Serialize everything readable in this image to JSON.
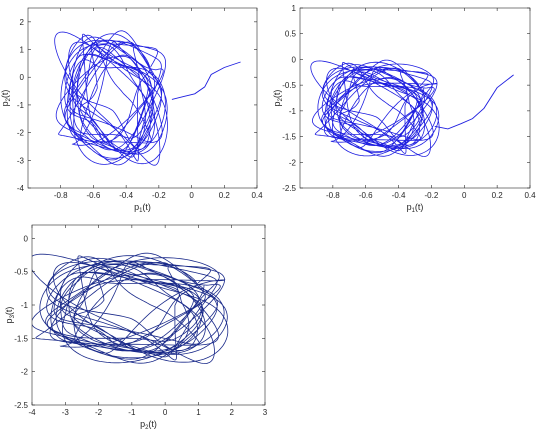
{
  "colors": {
    "curve": "#1f1fe0",
    "curve_dark": "#1a2a8a",
    "axis": "#262626",
    "bg": "#ffffff"
  },
  "chart_data": [
    {
      "type": "line",
      "title": "",
      "xlabel": "p_1(t)",
      "ylabel": "p_2(t)",
      "xlim": [
        -1,
        0.4
      ],
      "ylim": [
        -4,
        2.5
      ],
      "xticks": [
        "-0.8",
        "-0.6",
        "-0.4",
        "-0.2",
        "0",
        "0.2",
        "0.4"
      ],
      "yticks": [
        "2",
        "1",
        "0",
        "-1",
        "-2",
        "-3",
        "-4"
      ],
      "xtick_values": [
        -0.8,
        -0.6,
        -0.4,
        -0.2,
        0,
        0.2,
        0.4
      ],
      "ytick_values": [
        2,
        1,
        0,
        -1,
        -2,
        -3,
        -4
      ],
      "grid": false,
      "series": [
        {
          "color": "#1f1fe0",
          "attractor": {
            "cx": -0.48,
            "cy": -0.75,
            "rx": 0.3,
            "ry": 2.2,
            "loops": 22
          },
          "transient": {
            "x": [
              0.3,
              0.2,
              0.12,
              0.08,
              0.02,
              -0.05,
              -0.12
            ],
            "y": [
              0.55,
              0.35,
              0.1,
              -0.35,
              -0.6,
              -0.7,
              -0.8
            ]
          }
        }
      ]
    },
    {
      "type": "line",
      "title": "",
      "xlabel": "p_1(t)",
      "ylabel": "p_2(t)",
      "xlim": [
        -1,
        0.4
      ],
      "ylim": [
        -2.5,
        1
      ],
      "xticks": [
        "-0.8",
        "-0.6",
        "-0.4",
        "-0.2",
        "0",
        "0.2",
        "0.4"
      ],
      "yticks": [
        "1",
        "0.5",
        "0",
        "-0.5",
        "-1",
        "-1.5",
        "-2",
        "-2.5"
      ],
      "xtick_values": [
        -0.8,
        -0.6,
        -0.4,
        -0.2,
        0,
        0.2,
        0.4
      ],
      "ytick_values": [
        1,
        0.5,
        0,
        -0.5,
        -1,
        -1.5,
        -2,
        -2.5
      ],
      "grid": false,
      "series": [
        {
          "color": "#1f1fe0",
          "attractor": {
            "cx": -0.53,
            "cy": -0.95,
            "rx": 0.34,
            "ry": 0.85,
            "loops": 24
          },
          "transient": {
            "x": [
              0.3,
              0.2,
              0.12,
              0.05,
              -0.02,
              -0.1,
              -0.18
            ],
            "y": [
              -0.3,
              -0.55,
              -0.95,
              -1.15,
              -1.25,
              -1.35,
              -1.3
            ]
          }
        }
      ]
    },
    {
      "type": "line",
      "title": "",
      "xlabel": "p_2(t)",
      "ylabel": "p_3(t)",
      "xlim": [
        -4,
        3
      ],
      "ylim": [
        -2.5,
        0.2
      ],
      "xticks": [
        "-4",
        "-3",
        "-2",
        "-1",
        "0",
        "1",
        "2",
        "3"
      ],
      "yticks": [
        "0",
        "-0.5",
        "-1",
        "-1.5",
        "-2",
        "-2.5"
      ],
      "xtick_values": [
        -4,
        -3,
        -2,
        -1,
        0,
        1,
        2,
        3
      ],
      "ytick_values": [
        0,
        -0.5,
        -1,
        -1.5,
        -2,
        -2.5
      ],
      "grid": false,
      "series": [
        {
          "color": "#1a2a8a",
          "attractor": {
            "cx": -1.0,
            "cy": -1.05,
            "rx": 2.6,
            "ry": 0.75,
            "loops": 24
          },
          "transient": {
            "x": [],
            "y": []
          }
        }
      ]
    }
  ]
}
